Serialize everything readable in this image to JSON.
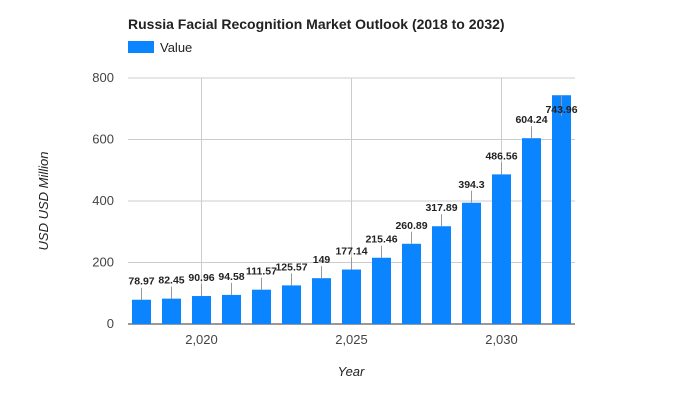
{
  "chart_data": {
    "type": "bar",
    "title": "Russia Facial Recognition Market Outlook (2018 to 2032)",
    "xlabel": "Year",
    "ylabel": "USD USD Million",
    "legend": {
      "position": "top-left",
      "entries": [
        "Value"
      ]
    },
    "x": [
      2018,
      2019,
      2020,
      2021,
      2022,
      2023,
      2024,
      2025,
      2026,
      2027,
      2028,
      2029,
      2030,
      2031,
      2032
    ],
    "series": [
      {
        "name": "Value",
        "color": "#0a84ff",
        "values": [
          78.97,
          82.45,
          90.96,
          94.58,
          111.57,
          125.57,
          149,
          177.14,
          215.46,
          260.89,
          317.89,
          394.3,
          486.56,
          604.24,
          743.96
        ]
      }
    ],
    "data_labels": [
      "78.97",
      "82.45",
      "90.96",
      "94.58",
      "111.57",
      "125.57",
      "149",
      "177.14",
      "215.46",
      "260.89",
      "317.89",
      "394.3",
      "486.56",
      "604.24",
      "743.96"
    ],
    "xticks": [
      2020,
      2025,
      2030
    ],
    "xtick_labels": [
      "2,020",
      "2,025",
      "2,030"
    ],
    "xlim": [
      2017.55,
      2032.45
    ],
    "yticks": [
      0,
      200,
      400,
      600,
      800
    ],
    "ytick_labels": [
      "0",
      "200",
      "400",
      "600",
      "800"
    ],
    "ylim": [
      0,
      800
    ],
    "grid": true
  }
}
